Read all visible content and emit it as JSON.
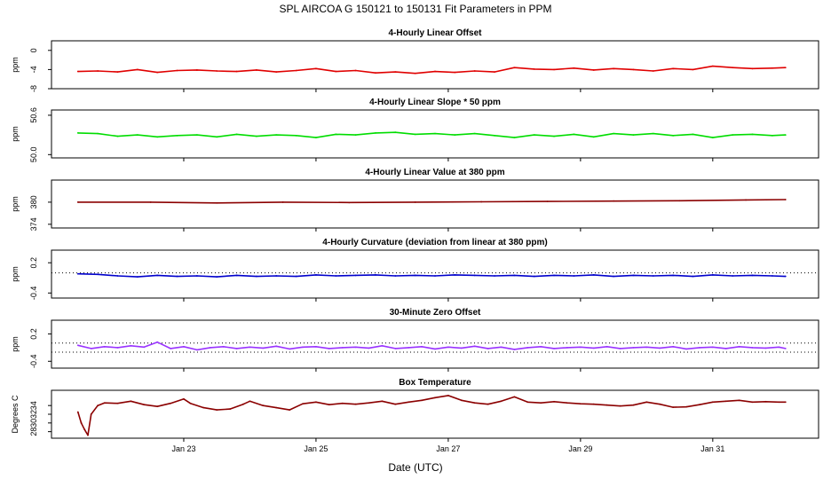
{
  "chart_data": [
    {
      "type": "line",
      "figure_title": "SPL   AIRCOA G   150121 to 150131   Fit Parameters in PPM",
      "title": "4-Hourly Linear Offset",
      "ylabel": "ppm",
      "ylim": [
        -8,
        2
      ],
      "yticks": [
        "0",
        "-4",
        "-8"
      ],
      "ytick_values": [
        0,
        -4,
        -8
      ],
      "series": [
        {
          "name": "offset",
          "color": "#e00000",
          "x": [
            21.4,
            21.7,
            22.0,
            22.3,
            22.6,
            22.9,
            23.2,
            23.5,
            23.8,
            24.1,
            24.4,
            24.7,
            25.0,
            25.3,
            25.6,
            25.9,
            26.2,
            26.5,
            26.8,
            27.1,
            27.4,
            27.7,
            28.0,
            28.3,
            28.6,
            28.9,
            29.2,
            29.5,
            29.8,
            30.1,
            30.4,
            30.7,
            31.0,
            31.3,
            31.6,
            31.9,
            32.1
          ],
          "values": [
            -4.4,
            -4.3,
            -4.5,
            -4.0,
            -4.6,
            -4.2,
            -4.1,
            -4.3,
            -4.4,
            -4.1,
            -4.5,
            -4.2,
            -3.8,
            -4.4,
            -4.2,
            -4.7,
            -4.5,
            -4.8,
            -4.4,
            -4.6,
            -4.3,
            -4.5,
            -3.6,
            -3.9,
            -4.0,
            -3.7,
            -4.1,
            -3.8,
            -4.0,
            -4.3,
            -3.8,
            -4.0,
            -3.3,
            -3.6,
            -3.8,
            -3.7,
            -3.6
          ]
        }
      ]
    },
    {
      "type": "line",
      "title": "4-Hourly Linear Slope * 50 ppm",
      "ylabel": "ppm",
      "ylim": [
        49.95,
        50.68
      ],
      "yticks": [
        "50.6",
        "50.0"
      ],
      "ytick_values": [
        50.6,
        50.0
      ],
      "series": [
        {
          "name": "slope",
          "color": "#00dd00",
          "x": [
            21.4,
            21.7,
            22.0,
            22.3,
            22.6,
            22.9,
            23.2,
            23.5,
            23.8,
            24.1,
            24.4,
            24.7,
            25.0,
            25.3,
            25.6,
            25.9,
            26.2,
            26.5,
            26.8,
            27.1,
            27.4,
            27.7,
            28.0,
            28.3,
            28.6,
            28.9,
            29.2,
            29.5,
            29.8,
            30.1,
            30.4,
            30.7,
            31.0,
            31.3,
            31.6,
            31.9,
            32.1
          ],
          "values": [
            50.33,
            50.32,
            50.28,
            50.3,
            50.27,
            50.29,
            50.3,
            50.27,
            50.31,
            50.28,
            50.3,
            50.29,
            50.26,
            50.31,
            50.3,
            50.33,
            50.34,
            50.31,
            50.32,
            50.3,
            50.32,
            50.29,
            50.26,
            50.3,
            50.28,
            50.31,
            50.27,
            50.32,
            50.3,
            50.32,
            50.29,
            50.31,
            50.26,
            50.3,
            50.31,
            50.29,
            50.3
          ]
        }
      ]
    },
    {
      "type": "line",
      "title": "4-Hourly Linear Value at 380 ppm",
      "ylabel": "ppm",
      "ylim": [
        373,
        386
      ],
      "yticks": [
        "380",
        "374"
      ],
      "ytick_values": [
        380,
        374
      ],
      "series": [
        {
          "name": "value_380",
          "color": "#8b0000",
          "x": [
            21.4,
            22.5,
            23.5,
            24.5,
            25.5,
            26.5,
            27.5,
            28.5,
            29.5,
            30.5,
            31.5,
            32.1
          ],
          "values": [
            380.0,
            380.0,
            379.8,
            380.0,
            379.9,
            380.0,
            380.1,
            380.2,
            380.3,
            380.4,
            380.6,
            380.7
          ]
        }
      ]
    },
    {
      "type": "line",
      "title": "4-Hourly Curvature (deviation from linear at 380 ppm)",
      "ylabel": "ppm",
      "ylim": [
        -0.5,
        0.45
      ],
      "yticks": [
        "0.2",
        "-0.4"
      ],
      "ytick_values": [
        0.2,
        -0.4
      ],
      "reference_line": 0.0,
      "series": [
        {
          "name": "curvature",
          "color": "#0000cc",
          "x": [
            21.4,
            21.7,
            22.0,
            22.3,
            22.6,
            22.9,
            23.2,
            23.5,
            23.8,
            24.1,
            24.4,
            24.7,
            25.0,
            25.3,
            25.6,
            25.9,
            26.2,
            26.5,
            26.8,
            27.1,
            27.4,
            27.7,
            28.0,
            28.3,
            28.6,
            28.9,
            29.2,
            29.5,
            29.8,
            30.1,
            30.4,
            30.7,
            31.0,
            31.3,
            31.6,
            31.9,
            32.1
          ],
          "values": [
            -0.02,
            -0.03,
            -0.06,
            -0.08,
            -0.05,
            -0.07,
            -0.06,
            -0.08,
            -0.05,
            -0.07,
            -0.06,
            -0.07,
            -0.04,
            -0.06,
            -0.05,
            -0.04,
            -0.06,
            -0.05,
            -0.06,
            -0.04,
            -0.05,
            -0.06,
            -0.05,
            -0.07,
            -0.05,
            -0.06,
            -0.04,
            -0.07,
            -0.05,
            -0.06,
            -0.05,
            -0.07,
            -0.04,
            -0.06,
            -0.05,
            -0.06,
            -0.07
          ]
        }
      ]
    },
    {
      "type": "line",
      "title": "30-Minute Zero Offset",
      "ylabel": "ppm",
      "ylim": [
        -0.55,
        0.5
      ],
      "yticks": [
        "0.2",
        "-0.4"
      ],
      "ytick_values": [
        0.2,
        -0.4
      ],
      "reference_lines": [
        0.0,
        -0.2
      ],
      "series": [
        {
          "name": "zero_offset",
          "color": "#9933ff",
          "x": [
            21.4,
            21.6,
            21.8,
            22.0,
            22.2,
            22.4,
            22.6,
            22.8,
            23.0,
            23.2,
            23.4,
            23.6,
            23.8,
            24.0,
            24.2,
            24.4,
            24.6,
            24.8,
            25.0,
            25.2,
            25.4,
            25.6,
            25.8,
            26.0,
            26.2,
            26.4,
            26.6,
            26.8,
            27.0,
            27.2,
            27.4,
            27.6,
            27.8,
            28.0,
            28.2,
            28.4,
            28.6,
            28.8,
            29.0,
            29.2,
            29.4,
            29.6,
            29.8,
            30.0,
            30.2,
            30.4,
            30.6,
            30.8,
            31.0,
            31.2,
            31.4,
            31.6,
            31.8,
            32.0,
            32.1
          ],
          "values": [
            -0.05,
            -0.12,
            -0.08,
            -0.1,
            -0.06,
            -0.09,
            0.02,
            -0.12,
            -0.08,
            -0.15,
            -0.1,
            -0.08,
            -0.12,
            -0.09,
            -0.11,
            -0.07,
            -0.13,
            -0.09,
            -0.08,
            -0.12,
            -0.1,
            -0.09,
            -0.11,
            -0.06,
            -0.12,
            -0.1,
            -0.08,
            -0.13,
            -0.09,
            -0.11,
            -0.07,
            -0.12,
            -0.09,
            -0.14,
            -0.1,
            -0.08,
            -0.12,
            -0.1,
            -0.09,
            -0.11,
            -0.08,
            -0.12,
            -0.1,
            -0.09,
            -0.11,
            -0.08,
            -0.13,
            -0.1,
            -0.09,
            -0.12,
            -0.08,
            -0.1,
            -0.11,
            -0.09,
            -0.12
          ]
        }
      ]
    },
    {
      "type": "line",
      "title": "Box Temperature",
      "ylabel": "Degrees C",
      "ylim": [
        26.5,
        37.5
      ],
      "yticks": [
        "34",
        "32",
        "30",
        "28"
      ],
      "ytick_values": [
        34,
        32,
        30,
        28
      ],
      "x_axis": {
        "label": "Date (UTC)",
        "range": [
          21.0,
          32.6
        ],
        "ticks": [
          "Jan 23",
          "Jan 25",
          "Jan 27",
          "Jan 29",
          "Jan 31"
        ],
        "tick_values": [
          23,
          25,
          27,
          29,
          31
        ]
      },
      "series": [
        {
          "name": "box_temperature",
          "color": "#8b0000",
          "x": [
            21.4,
            21.45,
            21.5,
            21.55,
            21.6,
            21.7,
            21.8,
            22.0,
            22.2,
            22.4,
            22.6,
            22.8,
            23.0,
            23.1,
            23.3,
            23.5,
            23.7,
            23.9,
            24.0,
            24.2,
            24.4,
            24.6,
            24.8,
            25.0,
            25.2,
            25.4,
            25.6,
            25.8,
            26.0,
            26.2,
            26.4,
            26.6,
            26.8,
            27.0,
            27.2,
            27.4,
            27.6,
            27.8,
            28.0,
            28.2,
            28.4,
            28.6,
            28.8,
            29.0,
            29.2,
            29.4,
            29.6,
            29.8,
            30.0,
            30.2,
            30.4,
            30.6,
            30.8,
            31.0,
            31.2,
            31.4,
            31.6,
            31.8,
            32.0,
            32.1
          ],
          "values": [
            32.5,
            30.0,
            28.5,
            27.2,
            32.0,
            34.0,
            34.6,
            34.5,
            35.0,
            34.2,
            33.8,
            34.5,
            35.5,
            34.5,
            33.5,
            33.0,
            33.2,
            34.3,
            35.0,
            34.0,
            33.5,
            33.0,
            34.4,
            34.8,
            34.2,
            34.5,
            34.3,
            34.6,
            35.0,
            34.3,
            34.8,
            35.2,
            35.8,
            36.3,
            35.2,
            34.6,
            34.3,
            35.0,
            36.0,
            34.8,
            34.6,
            34.9,
            34.6,
            34.4,
            34.3,
            34.1,
            33.9,
            34.1,
            34.8,
            34.3,
            33.6,
            33.7,
            34.2,
            34.8,
            35.0,
            35.2,
            34.8,
            34.9,
            34.8,
            34.8
          ]
        }
      ]
    }
  ]
}
